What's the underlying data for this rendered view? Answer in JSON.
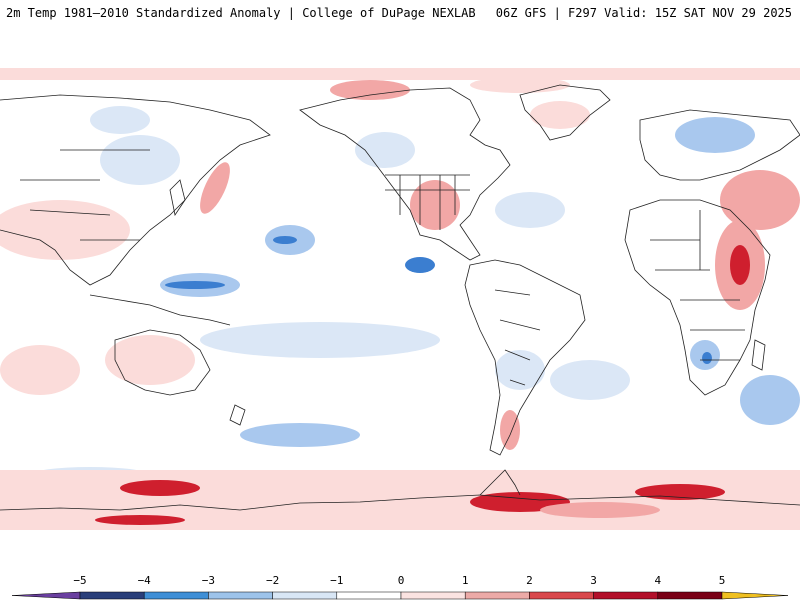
{
  "header": {
    "left": "2m Temp 1981–2010 Standardized Anomaly | College of DuPage NEXLAB",
    "right": "06Z GFS | F297 Valid: 15Z SAT NOV 29 2025"
  },
  "colorbar": {
    "ticks": [
      "−5",
      "−4",
      "−3",
      "−2",
      "−1",
      "0",
      "1",
      "2",
      "3",
      "4",
      "5"
    ],
    "colors": [
      "#6a3fa0",
      "#2a3f7a",
      "#3f8fd6",
      "#9dc3ea",
      "#d8e6f5",
      "#ffffff",
      "#fbe3e1",
      "#ecaaa7",
      "#d9484c",
      "#b3102a",
      "#7a0016",
      "#f0c020"
    ]
  },
  "colors": {
    "land_outline": "#222222",
    "ocean": "#ffffff",
    "warm_light": "#fbdcda",
    "warm_mid": "#f2a7a6",
    "warm_strong": "#cf1f2e",
    "cold_light": "#dbe7f6",
    "cold_mid": "#a9c8ee",
    "cold_strong": "#3b7ed0"
  }
}
